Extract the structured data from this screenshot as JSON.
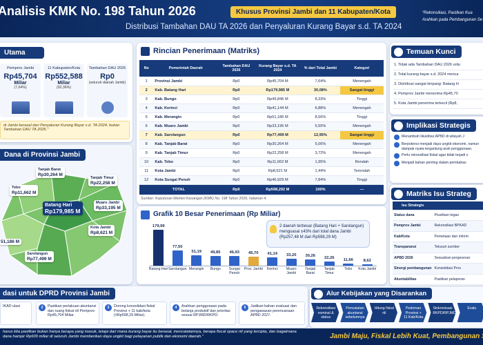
{
  "header": {
    "title": "Analisis KMK No. 198 Tahun 2026",
    "badge": "Khusus Provinsi Jambi dan 11 Kabupaten/Kota",
    "subtitle": "Distribusi Tambahan DAU TA 2026 dan Penyaluran Kurang Bayar s.d. TA 2024",
    "quote": [
      "“Rekonsiliasi, Pastikan Kua",
      "Arahkan pada Pembangunan Se"
    ]
  },
  "summary": {
    "title": "Utama",
    "cards": [
      {
        "label": "Pemprov Jambi",
        "value": "Rp45,704",
        "unit": "Miliar",
        "share": "(7,64%)"
      },
      {
        "label": "11 Kabupaten/Kota",
        "value": "Rp552,588",
        "unit": "Miliar",
        "share": "(92,36%)"
      },
      {
        "label": "Tambahan DAU 2026",
        "value": "Rp0",
        "share": "(seluruh daerah Jambi)"
      }
    ],
    "note": "di Jambi berasal dari Penyaluran Kurang Bayar s.d. TA 2024, bukan Tambahan DAU TA 2026.\""
  },
  "map": {
    "title": "Dana di Provinsi Jambi",
    "labels": [
      {
        "name": "Tanjab Barat",
        "value": "Rp30,264 M"
      },
      {
        "name": "Tanjab Timur",
        "value": "Rp22,258 M"
      },
      {
        "name": "Tebo",
        "value": "Rp11,662 M"
      },
      {
        "name": "Batang Hari",
        "value": "Rp179,985 M"
      },
      {
        "name": "Muaro Jambi",
        "value": "Rp33,195 M"
      },
      {
        "name": "Kota Jambi",
        "value": "Rp8,621 M"
      },
      {
        "value": "51,186 M"
      },
      {
        "name": "Sarolangun",
        "value": "Rp77,499 M"
      }
    ]
  },
  "table": {
    "title": "Rincian Penerimaan (Matriks)",
    "columns": [
      "No",
      "Pemerintah Daerah",
      "Tambahan DAU 2026",
      "Kurang Bayar s.d. TA 2024",
      "% dari Total Jambi",
      "Kategori"
    ],
    "rows": [
      [
        "1",
        "Provinsi Jambi",
        "Rp0",
        "Rp45,704 M",
        "7,64%",
        "Menengah"
      ],
      [
        "2",
        "Kab. Batang Hari",
        "Rp0",
        "Rp179,985 M",
        "30,08%",
        "Sangat tinggi"
      ],
      [
        "3",
        "Kab. Bungo",
        "Rp0",
        "Rp49,846 M",
        "8,33%",
        "Tinggi"
      ],
      [
        "4",
        "Kab. Kerinci",
        "Rp0",
        "Rp41,144 M",
        "6,88%",
        "Menengah"
      ],
      [
        "5",
        "Kab. Merangin",
        "Rp0",
        "Rp51,186 M",
        "8,56%",
        "Tinggi"
      ],
      [
        "6",
        "Kab. Muaro Jambi",
        "Rp0",
        "Rp33,195 M",
        "5,55%",
        "Menengah"
      ],
      [
        "7",
        "Kab. Sarolangun",
        "Rp0",
        "Rp77,499 M",
        "12,95%",
        "Sangat tinggi"
      ],
      [
        "8",
        "Kab. Tanjab Barat",
        "Rp0",
        "Rp30,264 M",
        "5,06%",
        "Menengah"
      ],
      [
        "9",
        "Kab. Tanjab Timur",
        "Rp0",
        "Rp22,258 M",
        "3,72%",
        "Menengah"
      ],
      [
        "10",
        "Kab. Tebo",
        "Rp0",
        "Rp11,662 M",
        "1,95%",
        "Rendah"
      ],
      [
        "11",
        "Kota Jambi",
        "Rp0",
        "Rp8,621 M",
        "1,44%",
        "Terendah"
      ],
      [
        "12",
        "Kota Sungai Penuh",
        "Rp0",
        "Rp46,929 M",
        "7,84%",
        "Tinggi"
      ]
    ],
    "highlight_rows": [
      1,
      6
    ],
    "total": [
      "TOTAL",
      "Rp0",
      "Rp598,292 M",
      "100%",
      "—"
    ],
    "source": "Sumber: Keputusan Menteri Keuangan (KMK) No. 198 Tahun 2026, halaman 4."
  },
  "chart_data": {
    "type": "bar",
    "title": "Grafik 10 Besar Penerimaan (Rp Miliar)",
    "categories": [
      "Batang Hari",
      "Sarolangun",
      "Merangin",
      "Bungo",
      "Sungai Penuh",
      "Prov. Jambi",
      "Kerinci",
      "Muaro Jambi",
      "Tanjab Barat",
      "Tanjab Timur",
      "Tebo",
      "Kota Jambi"
    ],
    "values": [
      179.99,
      77.5,
      51.19,
      49.85,
      46.93,
      45.7,
      41.14,
      33.2,
      30.26,
      22.26,
      11.66,
      8.62
    ],
    "value_labels": [
      "179,99",
      "77,50",
      "51,19",
      "49,85",
      "46,93",
      "45,70",
      "41,14",
      "33,20",
      "30,26",
      "22,26",
      "11,66",
      "8,62"
    ],
    "colors": [
      "#16306e",
      "#2f63c9",
      "#2f63c9",
      "#2f63c9",
      "#2f63c9",
      "#e3a93a",
      "#2f63c9",
      "#2f63c9",
      "#2f63c9",
      "#2f63c9",
      "#2f63c9",
      "#2f63c9"
    ],
    "annotation": "2 daerah terbesar (Batang Hari + Sarolangun) menguasai ±43% dari total dana Jambi (Rp257,48 M dari Rp598,29 M)"
  },
  "findings": {
    "title": "Temuan Kunci",
    "items": [
      "1. Tidak ada Tambahan DAU 2026 untu",
      "2. Total kurang bayar s.d. 2024 menca",
      "3. Distribusi sangat timpang: Batang H",
      "4. Pemprov Jambi menerima Rp45,70",
      "5. Kota Jambi penerima terkecil (Rp8,"
    ]
  },
  "implications": {
    "title": "Implikasi Strategis",
    "items": [
      "Menambah likuiditas APBD di wilayah J",
      "Berpotensi menjadi daya ungkit ekonomi, namun dampak nyata tergantung arah penggunaan.",
      "Perlu rekonsiliasi fiskal agar tidak terjadi s",
      "Menjadi bahan penting dalam pembahas"
    ]
  },
  "matrix": {
    "title": "Matriks Isu Strateg",
    "header": "Isu Strategis",
    "rows": [
      [
        "Status dana",
        "Pisahkan tegas"
      ],
      [
        "Pemprov Jambi",
        "Rekonsiliasi BPKAD"
      ],
      [
        "Kab/Kota",
        "Pemetaan dan inform"
      ],
      [
        "Transparansi",
        "Telusuri sumber"
      ],
      [
        "APBD 2026",
        "Sesuaikan pergeseran"
      ],
      [
        "Sinergi pembangunan",
        "Konsolidasi Prov"
      ],
      [
        "Akuntabilitas",
        "Pastikan pelaporan"
      ]
    ]
  },
  "recommendations": {
    "title": "dasi untuk DPRD Provinsi Jambi",
    "items": [
      {
        "text": "IKAD ulasi"
      },
      {
        "no": "2",
        "text": "Pastikan perlakuan akuntansi dan ruang fiskal riil Pemprov Rp45,704 Miliar."
      },
      {
        "no": "3",
        "text": "Dorong konsolidasi fiskal Provinsi + 11 kab/kota (±Rp598,29 Miliar)."
      },
      {
        "no": "4",
        "text": "Arahkan penggunaan pada belanja produktif dan prioritas sesuai RPJMD/RKPD."
      },
      {
        "no": "5",
        "text": "Jadikan bahan evaluasi dan pengawasan perencanaan APBD 2027."
      }
    ]
  },
  "flow": {
    "title": "Alur Kebijakan yang Disarankan",
    "steps": [
      "Rekonsiliasi nominal & status",
      "Pencatatan akuntansi sebelumnya",
      "Hitung fiskal riil",
      "Pedoman Provinsi + 11 Kab/Kota",
      "Sinkronisasi RKPD/RPJMD",
      "Evalu"
    ]
  },
  "footer": {
    "text": "harus kita pastikan bukan hanya berapa yang masuk, tetapi dari mana kurang bayar itu berasal, mencatatannya, berapa fiscal space riil yang tercipta, dan bagaimana dana hampir Rp600 miliar di seluruh Jambi memberikan daya ungkit bagi pelayanan publik dan ekonomi daerah.\"",
    "slogan": "Jambi Maju, Fiskal Lebih Kuat, Pembangunan Sem"
  }
}
